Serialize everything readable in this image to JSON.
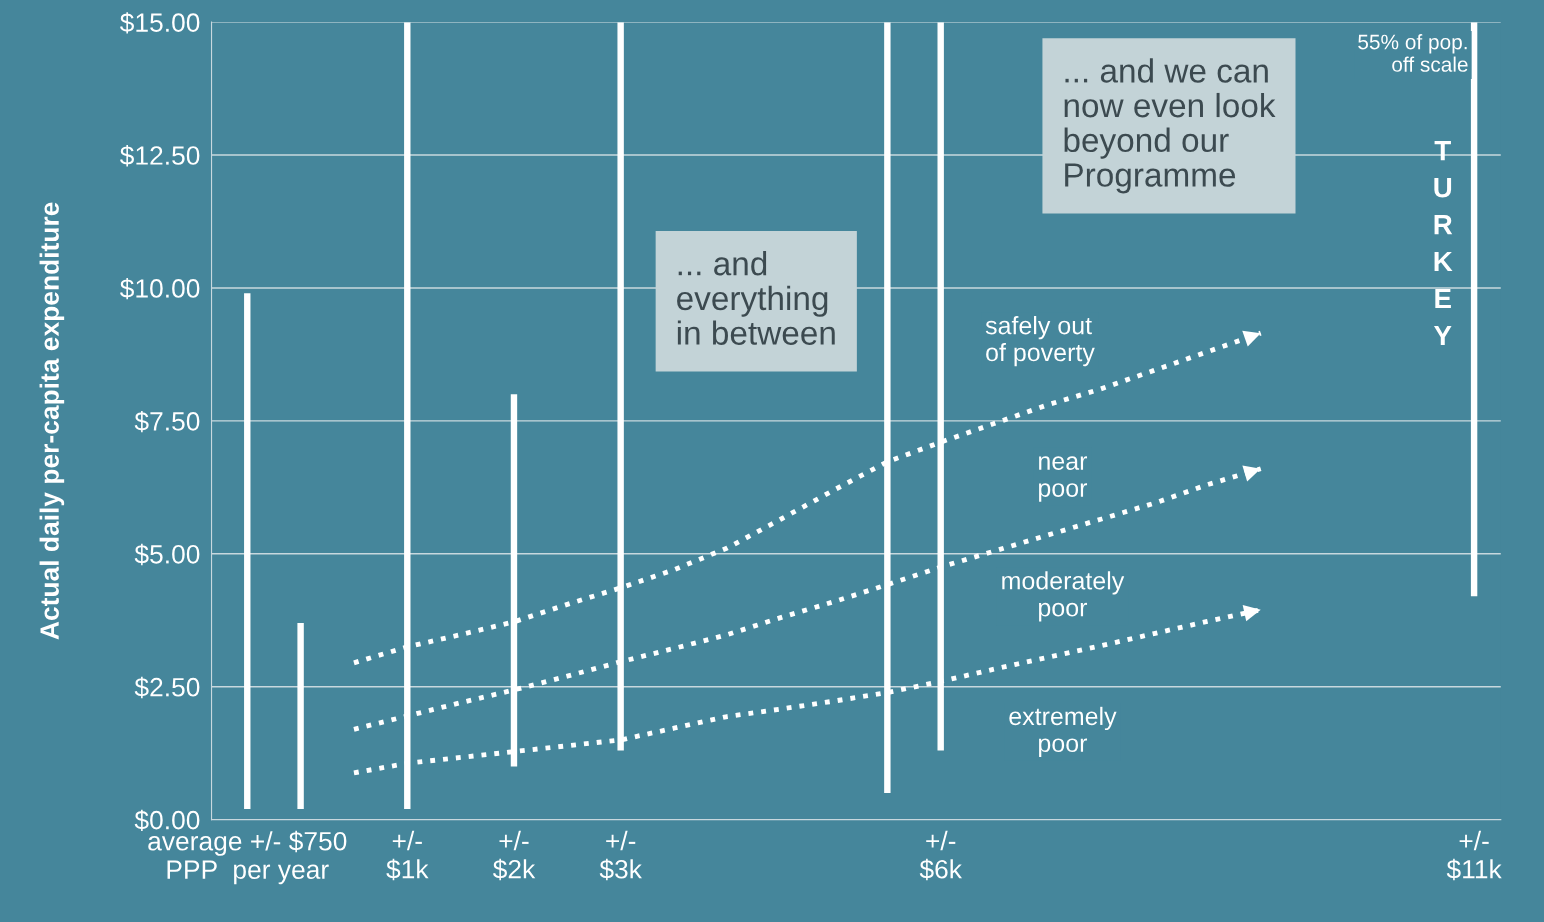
{
  "chart_data": {
    "type": "bar",
    "ylabel": "Actual daily per-capita expenditure",
    "categories": [
      "average +/- $750\nPPP  per year",
      null,
      null,
      "+/-\n$1k",
      null,
      "+/-\n$2k",
      null,
      "+/-\n$3k",
      null,
      null,
      null,
      null,
      null,
      "+/-\n$6k",
      null,
      null,
      null,
      null,
      null,
      null,
      null,
      null,
      null,
      "+/-\n$11k"
    ],
    "ylim": [
      0,
      15
    ],
    "yticks": [
      {
        "value": 0,
        "label": "$0.00"
      },
      {
        "value": 2.5,
        "label": "$2.50"
      },
      {
        "value": 5,
        "label": "$5.00"
      },
      {
        "value": 7.5,
        "label": "$7.50"
      },
      {
        "value": 10,
        "label": "$10.00"
      },
      {
        "value": 12.5,
        "label": "$12.50"
      },
      {
        "value": 15,
        "label": "$15.00"
      }
    ],
    "grid": "y",
    "series": [
      {
        "color": "#ffffff",
        "base": [
          0.2,
          0.2,
          null,
          0.2,
          null,
          1.0,
          null,
          1.3,
          null,
          null,
          null,
          null,
          0.5,
          1.3,
          null,
          null,
          null,
          null,
          null,
          null,
          null,
          null,
          null,
          4.2
        ],
        "values": [
          9.7,
          3.5,
          null,
          14.8,
          null,
          7.0,
          null,
          13.7,
          null,
          null,
          null,
          null,
          14.5,
          13.7,
          null,
          null,
          null,
          null,
          null,
          null,
          null,
          null,
          null,
          10.8
        ]
      },
      {
        "type": "line",
        "color": "#ffffff",
        "line_style": "dotted",
        "values": [
          null,
          null,
          0.88,
          1.06,
          1.17,
          1.28,
          1.39,
          1.5,
          1.72,
          1.94,
          2.08,
          2.23,
          2.39,
          2.6,
          2.83,
          3.05,
          3.27,
          3.5,
          3.73,
          3.95,
          null,
          null,
          null,
          null
        ]
      },
      {
        "type": "line",
        "color": "#ffffff",
        "line_style": "dotted",
        "values": [
          null,
          null,
          1.7,
          1.95,
          2.2,
          2.44,
          2.7,
          2.97,
          3.22,
          3.48,
          3.8,
          4.1,
          4.42,
          4.75,
          5.05,
          5.35,
          5.65,
          5.95,
          6.3,
          6.6,
          null,
          null,
          null,
          null
        ]
      },
      {
        "type": "line",
        "color": "#ffffff",
        "line_style": "dotted",
        "values": [
          null,
          null,
          2.95,
          3.25,
          3.48,
          3.72,
          4.05,
          4.36,
          4.7,
          5.11,
          5.65,
          6.2,
          6.73,
          7.1,
          7.45,
          7.8,
          8.1,
          8.45,
          8.8,
          9.15,
          null,
          null,
          null,
          null
        ]
      }
    ],
    "annotations": [
      "... and\neverything\nin between",
      "... and we can\nnow even look\nbeyond our\nProgramme",
      "safely out\nof poverty",
      "near\npoor",
      "moderately\npoor",
      "extremely\npoor",
      "TURKEY",
      "55% of pop.\noff scale"
    ]
  }
}
